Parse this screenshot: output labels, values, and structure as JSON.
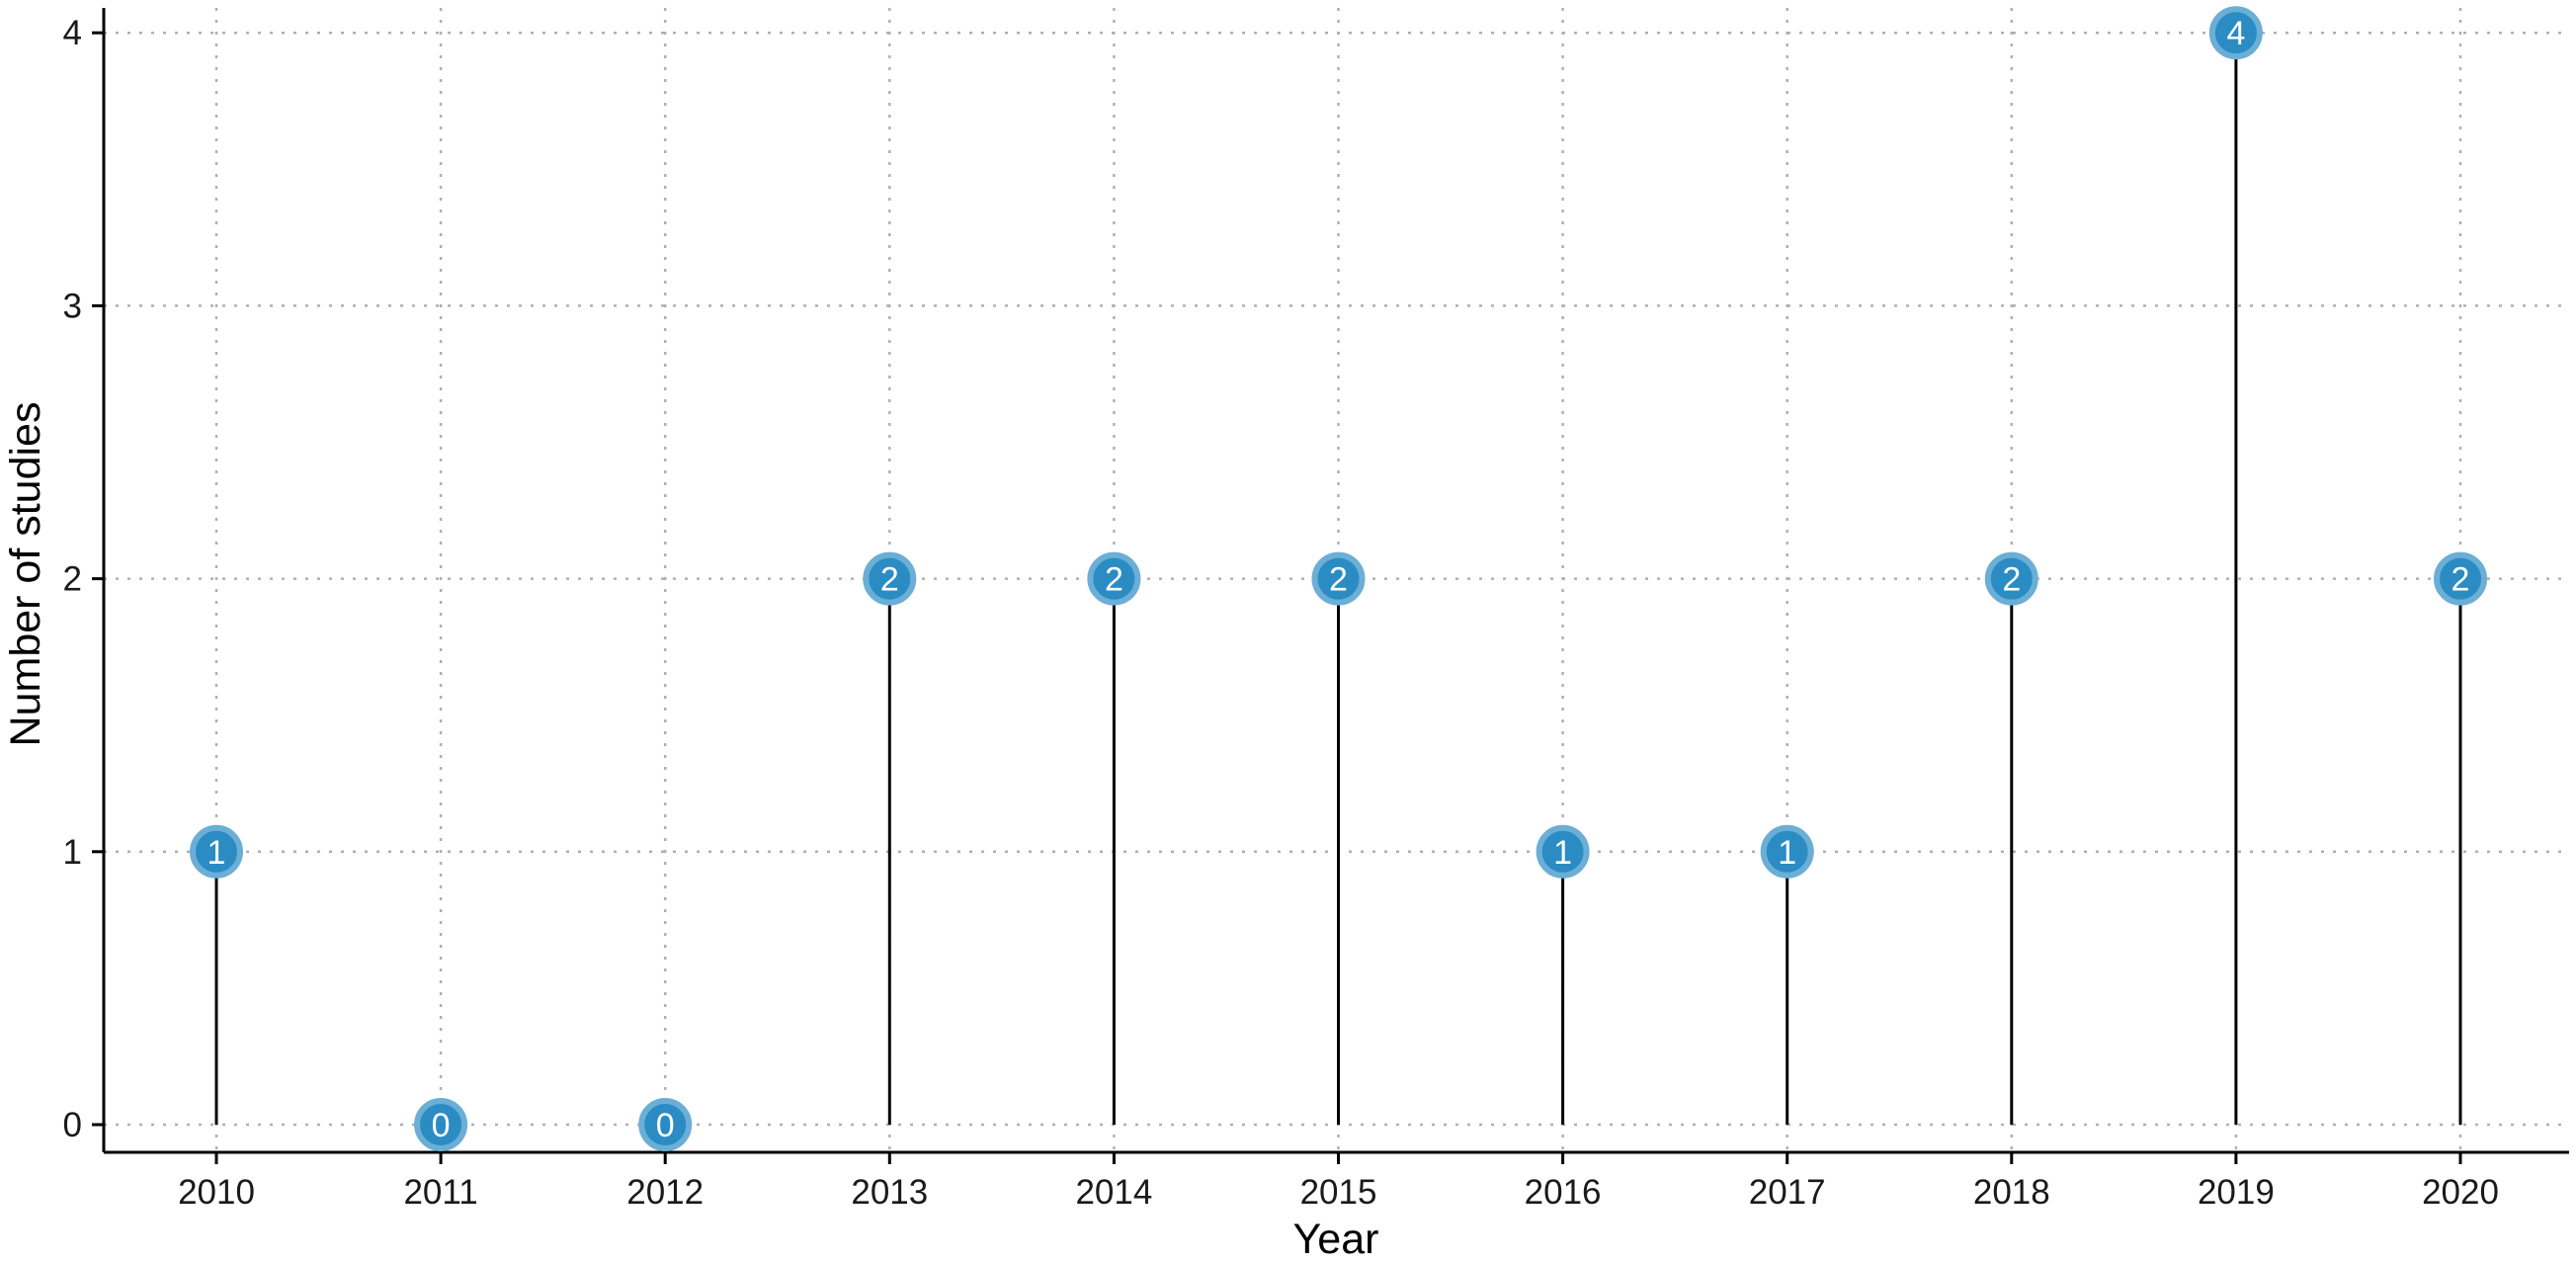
{
  "chart_data": {
    "type": "lollipop",
    "title": "",
    "xlabel": "Year",
    "ylabel": "Number of studies",
    "categories": [
      "2010",
      "2011",
      "2012",
      "2013",
      "2014",
      "2015",
      "2016",
      "2017",
      "2018",
      "2019",
      "2020"
    ],
    "values": [
      1,
      0,
      0,
      2,
      2,
      2,
      1,
      1,
      2,
      4,
      2
    ],
    "ylim": [
      0,
      4
    ],
    "yticks": [
      "0",
      "1",
      "2",
      "3",
      "4"
    ],
    "grid": "dotted, major x and y",
    "legend": "none",
    "point_labels": "value shown inside each marker",
    "colors": {
      "marker_fill": "#2b8cc4",
      "marker_stroke": "#6baed6",
      "stem": "#000000",
      "grid": "#b0b0b0",
      "axis": "#000000"
    }
  }
}
